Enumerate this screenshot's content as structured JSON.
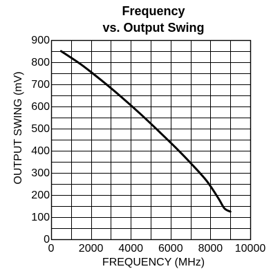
{
  "chart_data": {
    "type": "line",
    "title_lines": [
      "Frequency",
      "vs. Output Swing"
    ],
    "xlabel": "FREQUENCY (MHz)",
    "ylabel": "OUTPUT SWING (mV)",
    "xlim": [
      0,
      10000
    ],
    "ylim": [
      0,
      900
    ],
    "x_ticks": [
      0,
      2000,
      4000,
      6000,
      8000,
      10000
    ],
    "x_tick_labels": [
      "0",
      "2000",
      "4000",
      "6000",
      "8000",
      "10000"
    ],
    "y_ticks": [
      0,
      100,
      200,
      300,
      400,
      500,
      600,
      700,
      800,
      900
    ],
    "y_tick_labels": [
      "0",
      "100",
      "200",
      "300",
      "400",
      "500",
      "600",
      "700",
      "800",
      "900"
    ],
    "x_minor_step": 1000,
    "y_minor_step": 50,
    "grid": true,
    "series": [
      {
        "x": [
          500,
          1500,
          2500,
          3500,
          4500,
          5500,
          6300,
          7000,
          7800,
          8400,
          8700,
          9000
        ],
        "values": [
          850,
          790,
          720,
          645,
          565,
          480,
          410,
          345,
          265,
          185,
          140,
          125
        ]
      }
    ],
    "colors": {
      "line": "#000000",
      "grid": "#000000",
      "background": "#ffffff"
    }
  }
}
